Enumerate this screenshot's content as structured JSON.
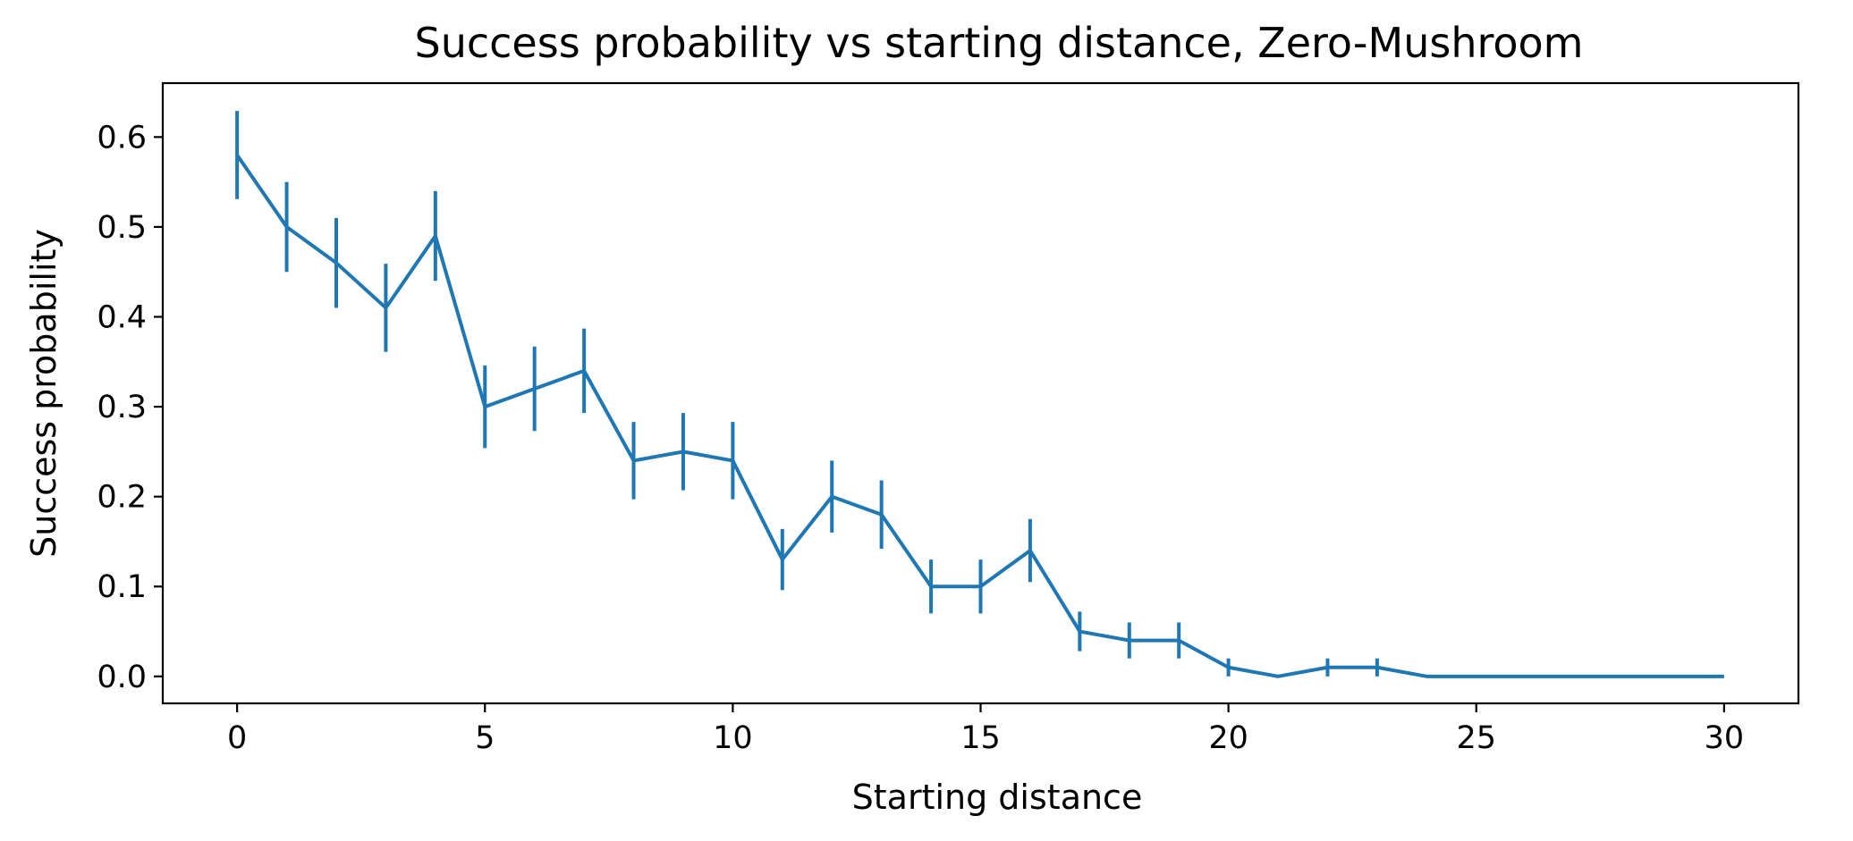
{
  "chart_data": {
    "type": "line",
    "title": "Success probability vs starting distance, Zero-Mushroom",
    "xlabel": "Starting distance",
    "ylabel": "Success probability",
    "xlim": [
      -1.5,
      31.5
    ],
    "ylim": [
      -0.03,
      0.66
    ],
    "xticks": [
      0,
      5,
      10,
      15,
      20,
      25,
      30
    ],
    "xtick_labels": [
      "0",
      "5",
      "10",
      "15",
      "20",
      "25",
      "30"
    ],
    "yticks": [
      0.0,
      0.1,
      0.2,
      0.3,
      0.4,
      0.5,
      0.6
    ],
    "ytick_labels": [
      "0.0",
      "0.1",
      "0.2",
      "0.3",
      "0.4",
      "0.5",
      "0.6"
    ],
    "grid": false,
    "series": [
      {
        "color": "#1f77b4",
        "x": [
          0,
          1,
          2,
          3,
          4,
          5,
          6,
          7,
          8,
          9,
          10,
          11,
          12,
          13,
          14,
          15,
          16,
          17,
          18,
          19,
          20,
          21,
          22,
          23,
          24,
          25,
          26,
          27,
          28,
          29,
          30
        ],
        "y": [
          0.58,
          0.5,
          0.46,
          0.41,
          0.49,
          0.3,
          0.32,
          0.34,
          0.24,
          0.25,
          0.24,
          0.13,
          0.2,
          0.18,
          0.1,
          0.1,
          0.14,
          0.05,
          0.04,
          0.04,
          0.01,
          0.0,
          0.01,
          0.01,
          0.0,
          0.0,
          0.0,
          0.0,
          0.0,
          0.0,
          0.0
        ],
        "yerr": [
          0.049,
          0.05,
          0.05,
          0.049,
          0.05,
          0.046,
          0.047,
          0.047,
          0.043,
          0.043,
          0.043,
          0.034,
          0.04,
          0.038,
          0.03,
          0.03,
          0.035,
          0.022,
          0.02,
          0.02,
          0.01,
          0.0,
          0.01,
          0.01,
          0.0,
          0.0,
          0.0,
          0.0,
          0.0,
          0.0,
          0.0
        ]
      }
    ]
  }
}
